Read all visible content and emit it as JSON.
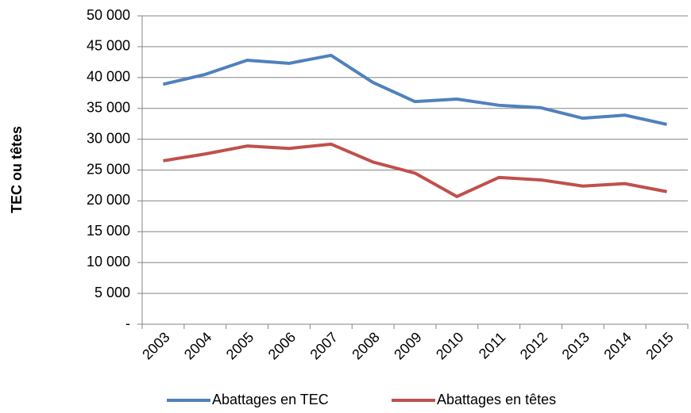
{
  "chart_data": {
    "type": "line",
    "y_label": "TEC ou têtes",
    "categories": [
      "2003",
      "2004",
      "2005",
      "2006",
      "2007",
      "2008",
      "2009",
      "2010",
      "2011",
      "2012",
      "2013",
      "2014",
      "2015"
    ],
    "series": [
      {
        "name": "Abattages en TEC",
        "color": "#4f81bd",
        "values": [
          38900,
          40500,
          42800,
          42300,
          43600,
          39200,
          36100,
          36500,
          35500,
          35100,
          33400,
          33900,
          32400
        ]
      },
      {
        "name": "Abattages en têtes",
        "color": "#c0504d",
        "values": [
          26500,
          27600,
          28900,
          28500,
          29200,
          26300,
          24500,
          20700,
          23800,
          23400,
          22400,
          22800,
          21500
        ]
      }
    ],
    "ylim": [
      0,
      50000
    ],
    "yticks": [
      {
        "value": 0,
        "label": "-"
      },
      {
        "value": 5000,
        "label": "5 000"
      },
      {
        "value": 10000,
        "label": "10 000"
      },
      {
        "value": 15000,
        "label": "15 000"
      },
      {
        "value": 20000,
        "label": "20 000"
      },
      {
        "value": 25000,
        "label": "25 000"
      },
      {
        "value": 30000,
        "label": "30 000"
      },
      {
        "value": 35000,
        "label": "35 000"
      },
      {
        "value": 40000,
        "label": "40 000"
      },
      {
        "value": 45000,
        "label": "45 000"
      },
      {
        "value": 50000,
        "label": "50 000"
      }
    ],
    "grid": true,
    "legend": "bottom"
  }
}
